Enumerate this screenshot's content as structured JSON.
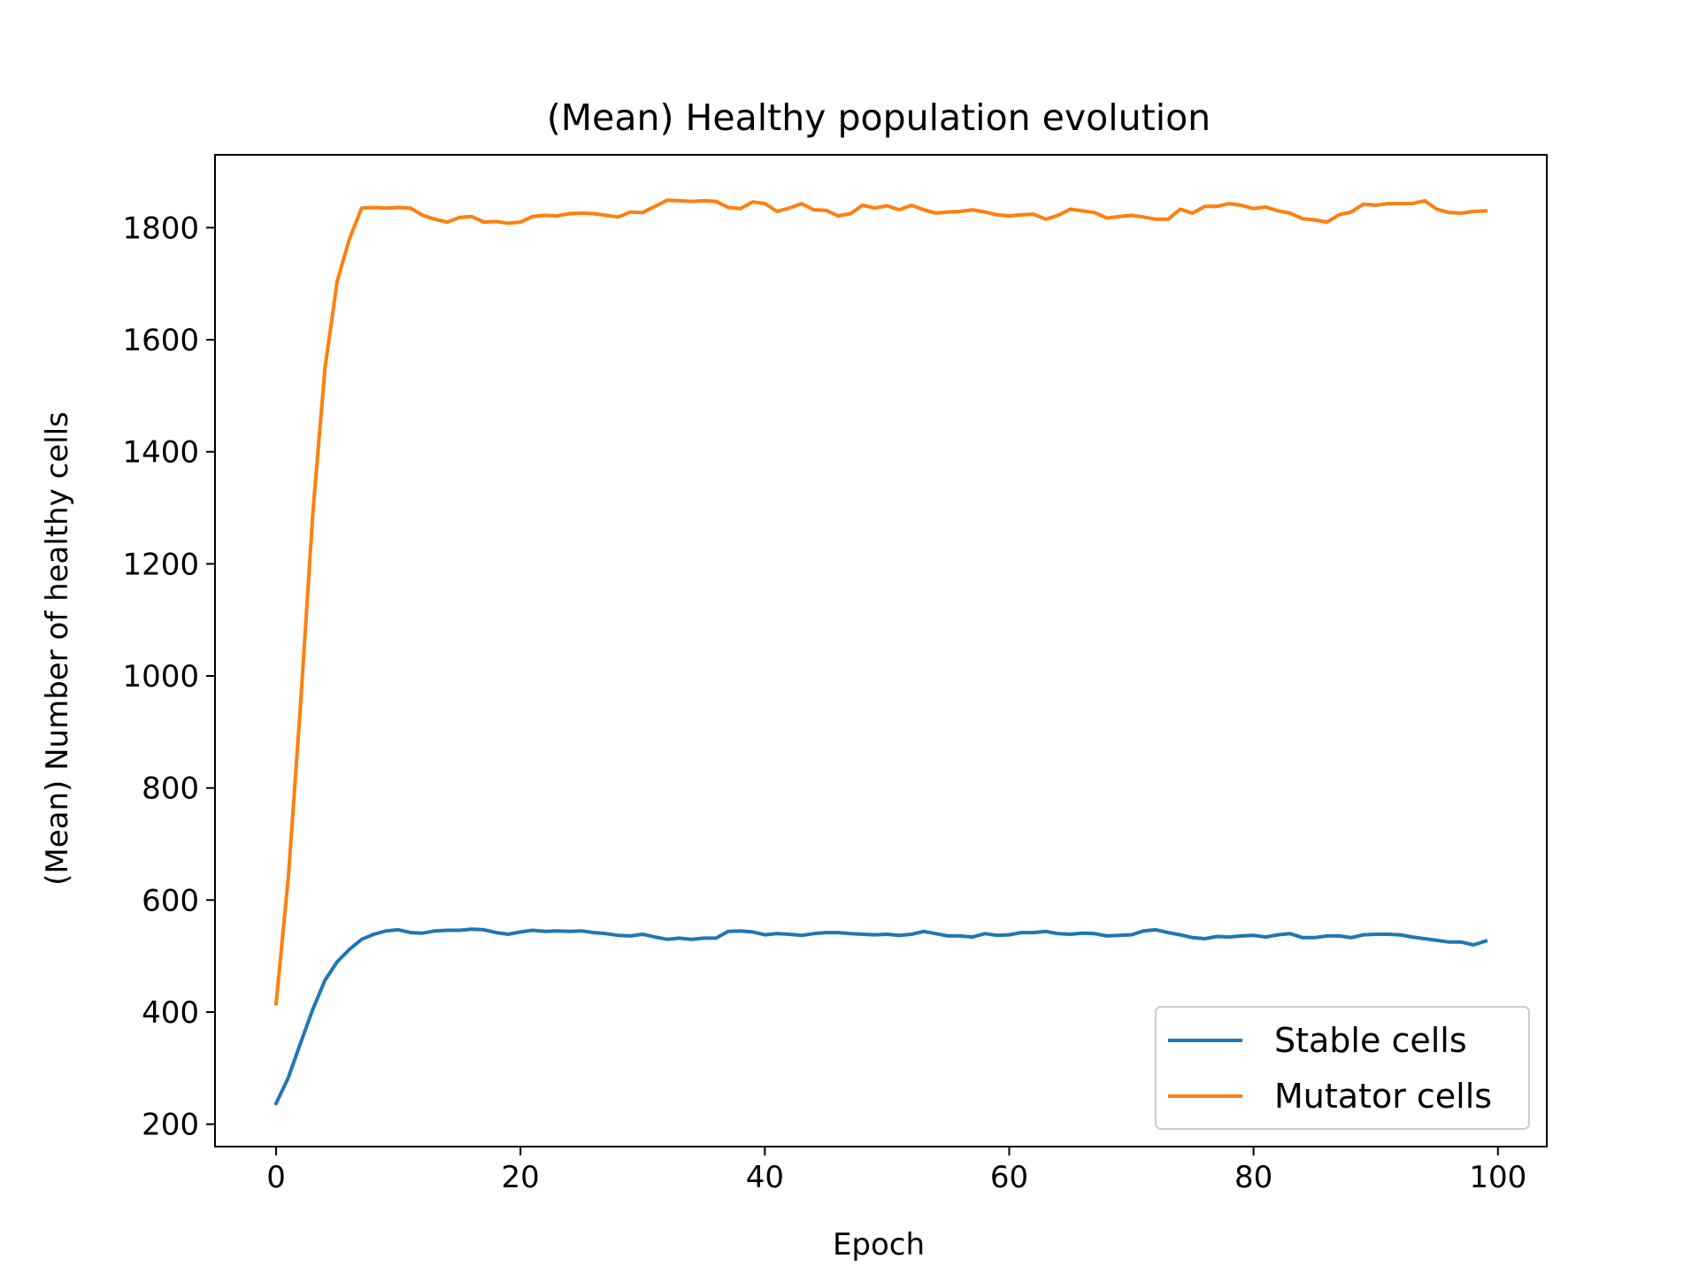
{
  "chart_data": {
    "type": "line",
    "title": "(Mean) Healthy population evolution",
    "xlabel": "Epoch",
    "ylabel": "(Mean) Number of healthy cells",
    "xlim": [
      -5,
      104
    ],
    "ylim": [
      160,
      1930
    ],
    "xticks": [
      0,
      20,
      40,
      60,
      80,
      100
    ],
    "yticks": [
      200,
      400,
      600,
      800,
      1000,
      1200,
      1400,
      1600,
      1800
    ],
    "grid": false,
    "legend_position": "lower-right",
    "x": [
      0,
      1,
      2,
      3,
      4,
      5,
      6,
      7,
      8,
      9,
      10,
      11,
      12,
      13,
      14,
      15,
      16,
      17,
      18,
      19,
      20,
      21,
      22,
      23,
      24,
      25,
      26,
      27,
      28,
      29,
      30,
      31,
      32,
      33,
      34,
      35,
      36,
      37,
      38,
      39,
      40,
      41,
      42,
      43,
      44,
      45,
      46,
      47,
      48,
      49,
      50,
      51,
      52,
      53,
      54,
      55,
      56,
      57,
      58,
      59,
      60,
      61,
      62,
      63,
      64,
      65,
      66,
      67,
      68,
      69,
      70,
      71,
      72,
      73,
      74,
      75,
      76,
      77,
      78,
      79,
      80,
      81,
      82,
      83,
      84,
      85,
      86,
      87,
      88,
      89,
      90,
      91,
      92,
      93,
      94,
      95,
      96,
      97,
      98,
      99
    ],
    "series": [
      {
        "name": "Stable cells",
        "color": "#1f77b4",
        "values": [
          237,
          283,
          345,
          405,
          457,
          490,
          512,
          530,
          539,
          545,
          547,
          542,
          541,
          545,
          546,
          546,
          548,
          547,
          542,
          539,
          543,
          546,
          544,
          545,
          544,
          545,
          542,
          540,
          537,
          536,
          539,
          534,
          530,
          532,
          530,
          532,
          532,
          544,
          545,
          543,
          538,
          540,
          539,
          537,
          540,
          542,
          542,
          540,
          539,
          538,
          539,
          537,
          539,
          544,
          540,
          536,
          536,
          534,
          540,
          537,
          538,
          542,
          542,
          544,
          540,
          539,
          541,
          540,
          536,
          537,
          538,
          545,
          547,
          542,
          538,
          533,
          531,
          535,
          534,
          536,
          537,
          534,
          538,
          540,
          533,
          533,
          536,
          536,
          533,
          538,
          539,
          539,
          538,
          534,
          531,
          528,
          525,
          525,
          520,
          527
        ]
      },
      {
        "name": "Mutator cells",
        "color": "#ff7f0e",
        "values": [
          415,
          640,
          950,
          1290,
          1550,
          1705,
          1780,
          1835,
          1836,
          1835,
          1836,
          1835,
          1822,
          1815,
          1810,
          1818,
          1820,
          1810,
          1811,
          1808,
          1810,
          1820,
          1822,
          1821,
          1825,
          1826,
          1825,
          1822,
          1819,
          1828,
          1827,
          1838,
          1849,
          1848,
          1847,
          1848,
          1847,
          1836,
          1834,
          1846,
          1843,
          1829,
          1835,
          1843,
          1832,
          1831,
          1821,
          1825,
          1840,
          1835,
          1839,
          1832,
          1840,
          1832,
          1826,
          1828,
          1829,
          1832,
          1828,
          1823,
          1821,
          1823,
          1824,
          1815,
          1822,
          1833,
          1830,
          1827,
          1817,
          1820,
          1822,
          1819,
          1815,
          1815,
          1833,
          1826,
          1838,
          1838,
          1843,
          1840,
          1834,
          1837,
          1830,
          1826,
          1816,
          1814,
          1810,
          1823,
          1828,
          1842,
          1840,
          1843,
          1843,
          1843,
          1848,
          1833,
          1827,
          1826,
          1829,
          1830
        ]
      }
    ]
  }
}
